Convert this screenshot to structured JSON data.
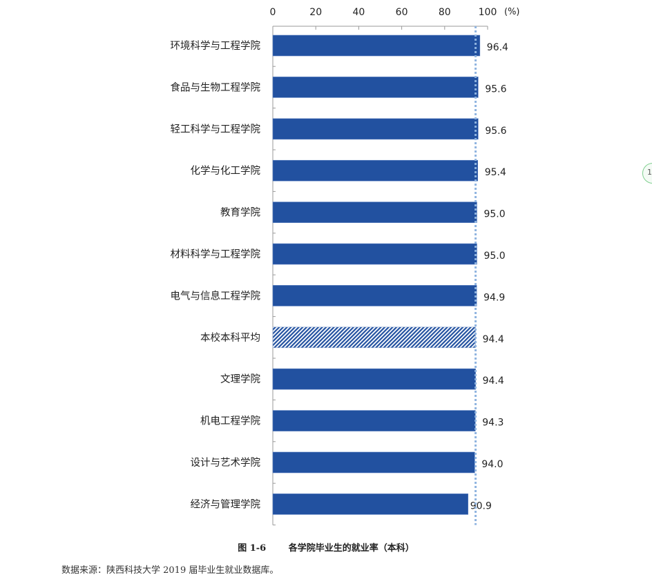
{
  "chart_data": {
    "type": "bar",
    "orientation": "horizontal",
    "categories": [
      "环境科学与工程学院",
      "食品与生物工程学院",
      "轻工科学与工程学院",
      "化学与化工学院",
      "教育学院",
      "材料科学与工程学院",
      "电气与信息工程学院",
      "本校本科平均",
      "文理学院",
      "机电工程学院",
      "设计与艺术学院",
      "经济与管理学院"
    ],
    "values": [
      96.4,
      95.6,
      95.6,
      95.4,
      95.0,
      95.0,
      94.9,
      94.4,
      94.4,
      94.3,
      94.0,
      90.9
    ],
    "value_labels": [
      "96.4",
      "95.6",
      "95.6",
      "95.4",
      "95.0",
      "95.0",
      "94.9",
      "94.4",
      "94.4",
      "94.3",
      "94.0",
      "90.9"
    ],
    "highlight_category": "本校本科平均",
    "reference_line": 94.4,
    "xlim": [
      0,
      100
    ],
    "xticks": [
      "0",
      "20",
      "40",
      "60",
      "80",
      "100"
    ],
    "xunit": "(%)",
    "axis_position": "top",
    "grid": false,
    "colors": {
      "bar": "#2251a0",
      "highlight_hatch": "#2251a0",
      "reference_line": "#8fb4e0"
    }
  },
  "figure": {
    "number": "图 1-6",
    "title": "各学院毕业生的就业率（本科）"
  },
  "source": "数据来源：陕西科技大学 2019 届毕业生就业数据库。",
  "badge_text": "1"
}
